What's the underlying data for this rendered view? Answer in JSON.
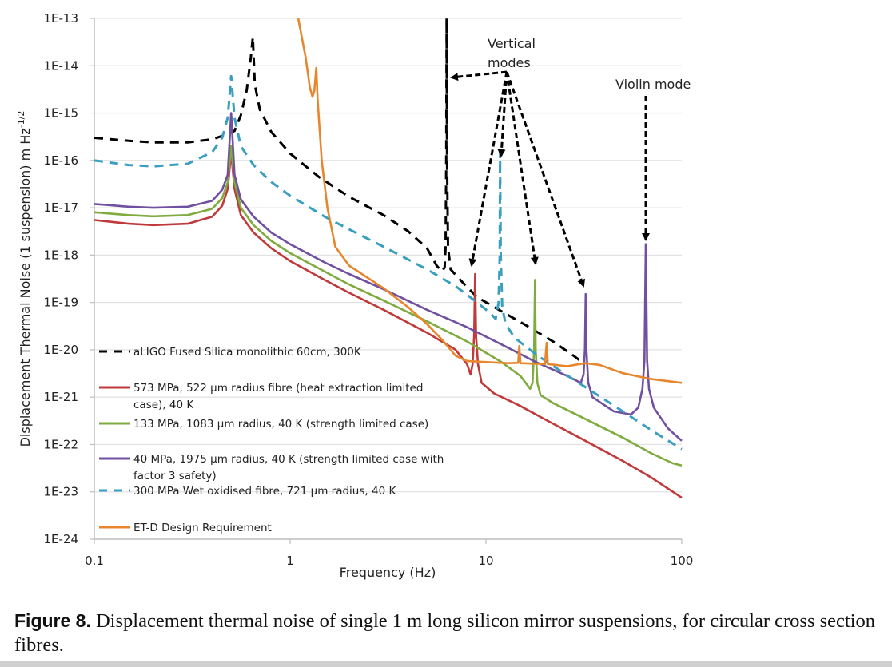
{
  "chart_data": {
    "type": "line",
    "title": "",
    "xlabel": "Frequency (Hz)",
    "ylabel": "Displacement Thermal Noise (1 suspension) m Hz",
    "ylabel_superscript": "-1/2",
    "xscale": "log",
    "yscale": "log",
    "xlim": [
      0.1,
      100
    ],
    "ylim": [
      1e-24,
      1e-13
    ],
    "grid": "horizontal",
    "legend_position": "bottom-left",
    "x_ticks": [
      {
        "value": 0.1,
        "label": "0.1"
      },
      {
        "value": 1,
        "label": "1"
      },
      {
        "value": 10,
        "label": "10"
      },
      {
        "value": 100,
        "label": "100"
      }
    ],
    "y_ticks": [
      {
        "value": 1e-13,
        "label": "1E-13"
      },
      {
        "value": 1e-14,
        "label": "1E-14"
      },
      {
        "value": 1e-15,
        "label": "1E-15"
      },
      {
        "value": 1e-16,
        "label": "1E-16"
      },
      {
        "value": 1e-17,
        "label": "1E-17"
      },
      {
        "value": 1e-18,
        "label": "1E-18"
      },
      {
        "value": 1e-19,
        "label": "1E-19"
      },
      {
        "value": 1e-20,
        "label": "1E-20"
      },
      {
        "value": 1e-21,
        "label": "1E-21"
      },
      {
        "value": 1e-22,
        "label": "1E-22"
      },
      {
        "value": 1e-23,
        "label": "1E-23"
      },
      {
        "value": 1e-24,
        "label": "1E-24"
      }
    ],
    "series": [
      {
        "name": "aLIGO Fused Silica monolithic 60cm, 300K",
        "legend_lines": [
          "aLIGO Fused Silica monolithic 60cm, 300K"
        ],
        "color": "#000000",
        "dashed": true,
        "points": [
          [
            0.1,
            3e-16
          ],
          [
            0.15,
            2.6e-16
          ],
          [
            0.2,
            2.4e-16
          ],
          [
            0.3,
            2.4e-16
          ],
          [
            0.4,
            2.8e-16
          ],
          [
            0.48,
            3.6e-16
          ],
          [
            0.52,
            4.2e-16
          ],
          [
            0.56,
            9e-16
          ],
          [
            0.6,
            3e-15
          ],
          [
            0.63,
            1.5e-14
          ],
          [
            0.645,
            4e-14
          ],
          [
            0.66,
            4e-15
          ],
          [
            0.7,
            1.2e-15
          ],
          [
            0.8,
            4e-16
          ],
          [
            1.0,
            1.4e-16
          ],
          [
            1.4,
            4.5e-17
          ],
          [
            2.0,
            1.7e-17
          ],
          [
            3.0,
            7e-18
          ],
          [
            4.0,
            3.2e-18
          ],
          [
            5.0,
            1.4e-18
          ],
          [
            5.6,
            6e-19
          ],
          [
            5.95,
            4.5e-19
          ],
          [
            6.15,
            5.5e-19
          ],
          [
            6.22,
            1.5e-18
          ],
          [
            6.27,
            1e-16
          ],
          [
            6.3,
            1e-13
          ],
          [
            6.33,
            1e-16
          ],
          [
            6.4,
            1.5e-18
          ],
          [
            6.6,
            5e-19
          ],
          [
            7.5,
            2.8e-19
          ],
          [
            9.0,
            1.3e-19
          ],
          [
            12.0,
            6.5e-20
          ],
          [
            16.0,
            3.3e-20
          ],
          [
            22.0,
            1.5e-20
          ],
          [
            28.0,
            7.5e-21
          ],
          [
            32.0,
            5e-21
          ]
        ]
      },
      {
        "name": "573 MPa, 522 µm radius fibre (heat extraction limited case), 40 K",
        "legend_lines": [
          "573 MPa, 522 µm radius fibre (heat extraction limited",
          "case), 40 K"
        ],
        "color": "#c0393b",
        "dashed": false,
        "points": [
          [
            0.1,
            5.5e-18
          ],
          [
            0.15,
            4.6e-18
          ],
          [
            0.2,
            4.3e-18
          ],
          [
            0.3,
            4.6e-18
          ],
          [
            0.4,
            6.5e-18
          ],
          [
            0.45,
            1.1e-17
          ],
          [
            0.48,
            2.5e-17
          ],
          [
            0.5,
            1.5e-16
          ],
          [
            0.52,
            2.5e-17
          ],
          [
            0.56,
            7e-18
          ],
          [
            0.65,
            3e-18
          ],
          [
            0.8,
            1.4e-18
          ],
          [
            1.0,
            7.5e-19
          ],
          [
            1.5,
            3e-19
          ],
          [
            2.0,
            1.6e-19
          ],
          [
            3.0,
            7e-20
          ],
          [
            5.0,
            2.3e-20
          ],
          [
            7.0,
            1e-20
          ],
          [
            8.0,
            5e-21
          ],
          [
            8.35,
            3e-21
          ],
          [
            8.55,
            5e-21
          ],
          [
            8.7,
            2e-20
          ],
          [
            8.8,
            4e-19
          ],
          [
            8.9,
            2e-20
          ],
          [
            9.1,
            5e-21
          ],
          [
            9.5,
            2e-21
          ],
          [
            11.0,
            1.2e-21
          ],
          [
            15.0,
            6.5e-22
          ],
          [
            20.0,
            3.4e-22
          ],
          [
            30.0,
            1.4e-22
          ],
          [
            50.0,
            4.5e-23
          ],
          [
            70.0,
            2e-23
          ],
          [
            100.0,
            7.5e-24
          ]
        ]
      },
      {
        "name": "133 MPa, 1083 µm radius, 40 K (strength limited case)",
        "legend_lines": [
          "133 MPa, 1083 µm radius, 40 K (strength limited case)"
        ],
        "color": "#7fab3f",
        "dashed": false,
        "points": [
          [
            0.1,
            8e-18
          ],
          [
            0.15,
            7e-18
          ],
          [
            0.2,
            6.6e-18
          ],
          [
            0.3,
            7e-18
          ],
          [
            0.4,
            9.5e-18
          ],
          [
            0.45,
            1.6e-17
          ],
          [
            0.48,
            3.5e-17
          ],
          [
            0.5,
            2e-16
          ],
          [
            0.52,
            3.5e-17
          ],
          [
            0.56,
            1e-17
          ],
          [
            0.65,
            4.3e-18
          ],
          [
            0.8,
            2e-18
          ],
          [
            1.0,
            1.1e-18
          ],
          [
            1.5,
            4.5e-19
          ],
          [
            2.0,
            2.4e-19
          ],
          [
            3.0,
            1.1e-19
          ],
          [
            5.0,
            4e-20
          ],
          [
            8.0,
            1.5e-20
          ],
          [
            12.0,
            5.5e-21
          ],
          [
            15.0,
            2.8e-21
          ],
          [
            16.8,
            1.5e-21
          ],
          [
            17.3,
            2e-21
          ],
          [
            17.6,
            1e-20
          ],
          [
            17.8,
            3e-19
          ],
          [
            17.95,
            1e-20
          ],
          [
            18.3,
            2e-21
          ],
          [
            19.0,
            1.1e-21
          ],
          [
            22.0,
            7.5e-22
          ],
          [
            30.0,
            4e-22
          ],
          [
            50.0,
            1.4e-22
          ],
          [
            70.0,
            6.5e-23
          ],
          [
            90.0,
            4e-23
          ],
          [
            100.0,
            3.6e-23
          ]
        ]
      },
      {
        "name": "40 MPa, 1975 µm radius, 40 K (strength limited case with factor 3 safety)",
        "legend_lines": [
          "40 MPa, 1975 µm radius, 40 K (strength limited case with",
          "factor 3 safety)"
        ],
        "color": "#7050a0",
        "dashed": false,
        "points": [
          [
            0.1,
            1.2e-17
          ],
          [
            0.15,
            1.05e-17
          ],
          [
            0.2,
            1e-17
          ],
          [
            0.3,
            1.05e-17
          ],
          [
            0.4,
            1.4e-17
          ],
          [
            0.45,
            2.4e-17
          ],
          [
            0.48,
            5e-17
          ],
          [
            0.5,
            1e-15
          ],
          [
            0.52,
            5e-17
          ],
          [
            0.56,
            1.5e-17
          ],
          [
            0.65,
            6.5e-18
          ],
          [
            0.8,
            3e-18
          ],
          [
            1.0,
            1.7e-18
          ],
          [
            1.5,
            7e-19
          ],
          [
            2.0,
            4e-19
          ],
          [
            3.0,
            1.9e-19
          ],
          [
            5.0,
            7e-20
          ],
          [
            8.0,
            3e-20
          ],
          [
            12.0,
            1.3e-20
          ],
          [
            18.0,
            5.5e-21
          ],
          [
            26.0,
            2.8e-21
          ],
          [
            30.5,
            2e-21
          ],
          [
            31.5,
            3e-21
          ],
          [
            32.0,
            1e-20
          ],
          [
            32.3,
            1.5e-19
          ],
          [
            32.6,
            1e-20
          ],
          [
            33.3,
            2e-21
          ],
          [
            35.0,
            1e-21
          ],
          [
            45.0,
            5e-22
          ],
          [
            55.0,
            4.3e-22
          ],
          [
            60.0,
            6e-22
          ],
          [
            63.0,
            1.5e-21
          ],
          [
            64.5,
            6e-21
          ],
          [
            65.5,
            1.7e-18
          ],
          [
            66.5,
            6e-21
          ],
          [
            68.0,
            1.5e-21
          ],
          [
            72.0,
            6e-22
          ],
          [
            85.0,
            2.2e-22
          ],
          [
            100.0,
            1.2e-22
          ]
        ]
      },
      {
        "name": "300 MPa Wet oxidised fibre, 721 µm radius, 40 K",
        "legend_lines": [
          "300 MPa Wet oxidised fibre, 721 µm radius, 40 K"
        ],
        "color": "#3a9fbf",
        "dashed": true,
        "points": [
          [
            0.1,
            1e-16
          ],
          [
            0.15,
            8e-17
          ],
          [
            0.2,
            7.5e-17
          ],
          [
            0.3,
            8.5e-17
          ],
          [
            0.4,
            1.5e-16
          ],
          [
            0.45,
            3e-16
          ],
          [
            0.48,
            8e-16
          ],
          [
            0.5,
            6e-15
          ],
          [
            0.52,
            8e-16
          ],
          [
            0.56,
            2e-16
          ],
          [
            0.65,
            8e-17
          ],
          [
            0.8,
            3.5e-17
          ],
          [
            1.0,
            1.8e-17
          ],
          [
            1.5,
            6.5e-18
          ],
          [
            2.0,
            3.5e-18
          ],
          [
            3.0,
            1.5e-18
          ],
          [
            5.0,
            5e-19
          ],
          [
            7.0,
            2.2e-19
          ],
          [
            9.0,
            1e-19
          ],
          [
            10.5,
            6e-20
          ],
          [
            11.2,
            4.5e-20
          ],
          [
            11.6,
            1e-19
          ],
          [
            11.75,
            1e-18
          ],
          [
            11.8,
            1.5e-16
          ],
          [
            11.9,
            1e-18
          ],
          [
            12.1,
            8e-20
          ],
          [
            12.6,
            3.5e-20
          ],
          [
            14.0,
            1.8e-20
          ],
          [
            18.0,
            8e-21
          ],
          [
            25.0,
            3.2e-21
          ],
          [
            35.0,
            1.3e-21
          ],
          [
            50.0,
            5e-22
          ],
          [
            70.0,
            2e-22
          ],
          [
            100.0,
            8e-23
          ]
        ]
      },
      {
        "name": "ET-D Design Requirement",
        "legend_lines": [
          "ET-D Design Requirement"
        ],
        "color": "#e8862d",
        "dashed": false,
        "points": [
          [
            1.1,
            1e-13
          ],
          [
            1.2,
            1.5e-14
          ],
          [
            1.26,
            3.5e-15
          ],
          [
            1.3,
            2.2e-15
          ],
          [
            1.33,
            3e-15
          ],
          [
            1.36,
            9e-15
          ],
          [
            1.38,
            2e-15
          ],
          [
            1.45,
            1e-16
          ],
          [
            1.55,
            1e-17
          ],
          [
            1.7,
            1.5e-18
          ],
          [
            2.0,
            6e-19
          ],
          [
            3.0,
            2e-19
          ],
          [
            4.0,
            8e-20
          ],
          [
            5.0,
            3.5e-20
          ],
          [
            6.0,
            1.6e-20
          ],
          [
            7.0,
            7.5e-21
          ],
          [
            8.0,
            5.8e-21
          ],
          [
            10.0,
            5.5e-21
          ],
          [
            13.0,
            5.2e-21
          ],
          [
            14.6,
            5.3e-21
          ],
          [
            14.8,
            1.2e-20
          ],
          [
            15.0,
            5.2e-21
          ],
          [
            20.0,
            5e-21
          ],
          [
            20.4,
            1.4e-20
          ],
          [
            20.7,
            5e-21
          ],
          [
            26.0,
            4.5e-21
          ],
          [
            32.0,
            5.2e-21
          ],
          [
            38.0,
            4.8e-21
          ],
          [
            50.0,
            3.2e-21
          ],
          [
            70.0,
            2.4e-21
          ],
          [
            100.0,
            2e-21
          ]
        ]
      }
    ],
    "annotations": [
      {
        "text_lines": [
          "Vertical",
          "modes"
        ],
        "kind": "label"
      },
      {
        "text_lines": [
          "Violin mode"
        ],
        "kind": "label"
      }
    ]
  },
  "caption": {
    "label": "Figure 8.",
    "text": " Displacement thermal noise of single 1 m long silicon mirror suspensions, for circular cross section fibres."
  }
}
